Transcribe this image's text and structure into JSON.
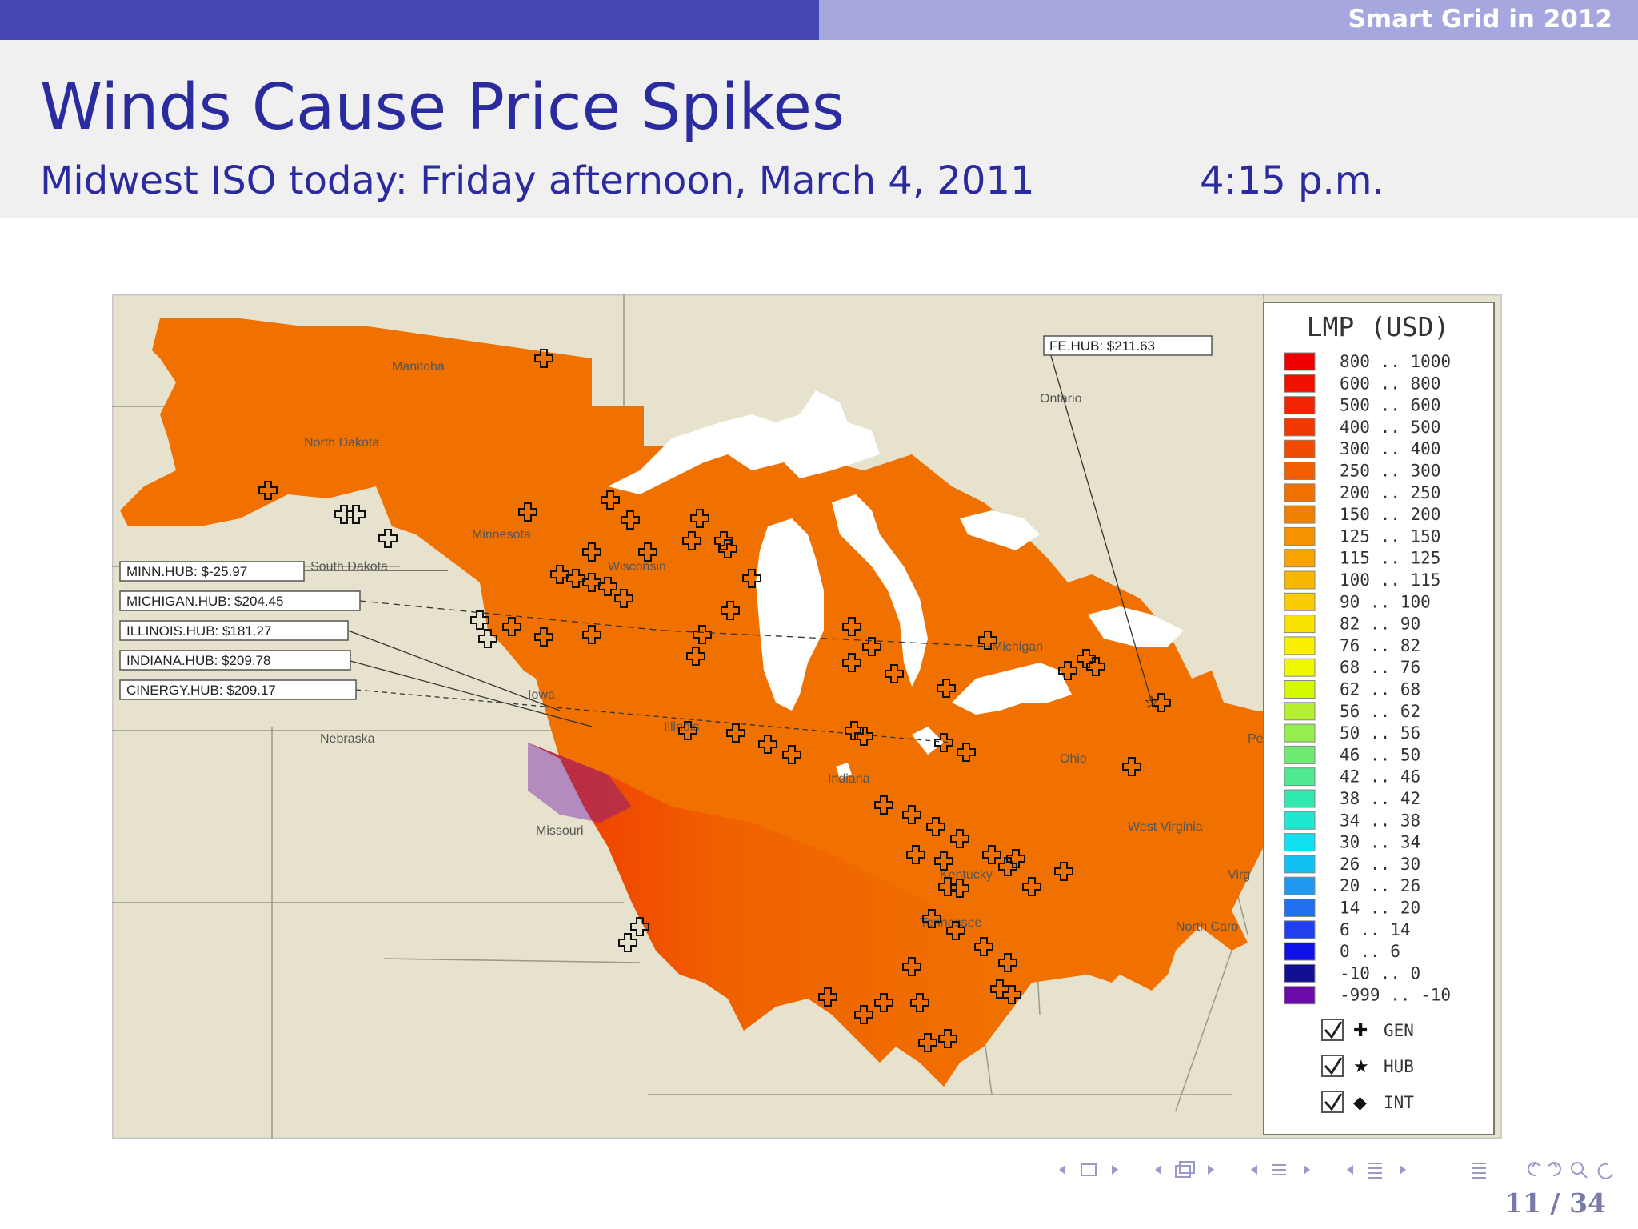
{
  "header": {
    "section_title": "Smart Grid in 2012"
  },
  "slide": {
    "title": "Winds Cause Price Spikes",
    "subtitle": "Midwest ISO today: Friday afternoon, March 4, 2011",
    "time": "4:15 p.m."
  },
  "map": {
    "hub_labels": [
      "MINN.HUB: $-25.97",
      "MICHIGAN.HUB: $204.45",
      "ILLINOIS.HUB: $181.27",
      "INDIANA.HUB: $209.78",
      "CINERGY.HUB: $209.17",
      "FE.HUB: $211.63"
    ],
    "region_labels": {
      "manitoba": "Manitoba",
      "ontario": "Ontario",
      "north_dakota": "North Dakota",
      "south_dakota": "South Dakota",
      "minnesota": "Minnesota",
      "wisconsin": "Wisconsin",
      "michigan": "Michigan",
      "iowa": "Iowa",
      "illinois": "Illinois",
      "indiana": "Indiana",
      "ohio": "Ohio",
      "nebraska": "Nebraska",
      "missouri": "Missouri",
      "kentucky": "Kentucky",
      "west_virginia": "West Virginia",
      "tennessee": "Tennessee",
      "north_carolina": "North Caro",
      "pennsylvania": "Per",
      "virginia": "Virg"
    }
  },
  "legend": {
    "title": "LMP (USD)",
    "ranges": [
      {
        "label": "800 .. 1000",
        "color": "#ee0000"
      },
      {
        "label": "600 .. 800",
        "color": "#f01000"
      },
      {
        "label": "500 .. 600",
        "color": "#f02400"
      },
      {
        "label": "400 .. 500",
        "color": "#f03800"
      },
      {
        "label": "300 .. 400",
        "color": "#f04c00"
      },
      {
        "label": "250 .. 300",
        "color": "#f05e00"
      },
      {
        "label": "200 .. 250",
        "color": "#f07000"
      },
      {
        "label": "150 .. 200",
        "color": "#f08000"
      },
      {
        "label": "125 .. 150",
        "color": "#f59200"
      },
      {
        "label": "115 .. 125",
        "color": "#f8a400"
      },
      {
        "label": "100 .. 115",
        "color": "#f8b800"
      },
      {
        "label": "90 .. 100",
        "color": "#f8cc00"
      },
      {
        "label": "82 .. 90",
        "color": "#f8e000"
      },
      {
        "label": "76 .. 82",
        "color": "#f8f000"
      },
      {
        "label": "68 .. 76",
        "color": "#f0f800"
      },
      {
        "label": "62 .. 68",
        "color": "#d4f800"
      },
      {
        "label": "56 .. 62",
        "color": "#b4f030"
      },
      {
        "label": "50 .. 56",
        "color": "#94ee50"
      },
      {
        "label": "46 .. 50",
        "color": "#70ea70"
      },
      {
        "label": "42 .. 46",
        "color": "#50e890"
      },
      {
        "label": "38 .. 42",
        "color": "#30e8b0"
      },
      {
        "label": "34 .. 38",
        "color": "#20e8d0"
      },
      {
        "label": "30 .. 34",
        "color": "#10e0f0"
      },
      {
        "label": "26 .. 30",
        "color": "#10c0f0"
      },
      {
        "label": "20 .. 26",
        "color": "#2098f0"
      },
      {
        "label": "14 .. 20",
        "color": "#2070f0"
      },
      {
        "label": "6 .. 14",
        "color": "#2040f0"
      },
      {
        "label": "0 .. 6",
        "color": "#1010e8"
      },
      {
        "label": "-10 .. 0",
        "color": "#101090"
      },
      {
        "label": "-999 .. -10",
        "color": "#6a0aa8"
      }
    ],
    "toggles": [
      {
        "label": "GEN",
        "checked": true
      },
      {
        "label": "HUB",
        "checked": true
      },
      {
        "label": "INT",
        "checked": true
      }
    ]
  },
  "footer": {
    "page": "11 / 34"
  }
}
